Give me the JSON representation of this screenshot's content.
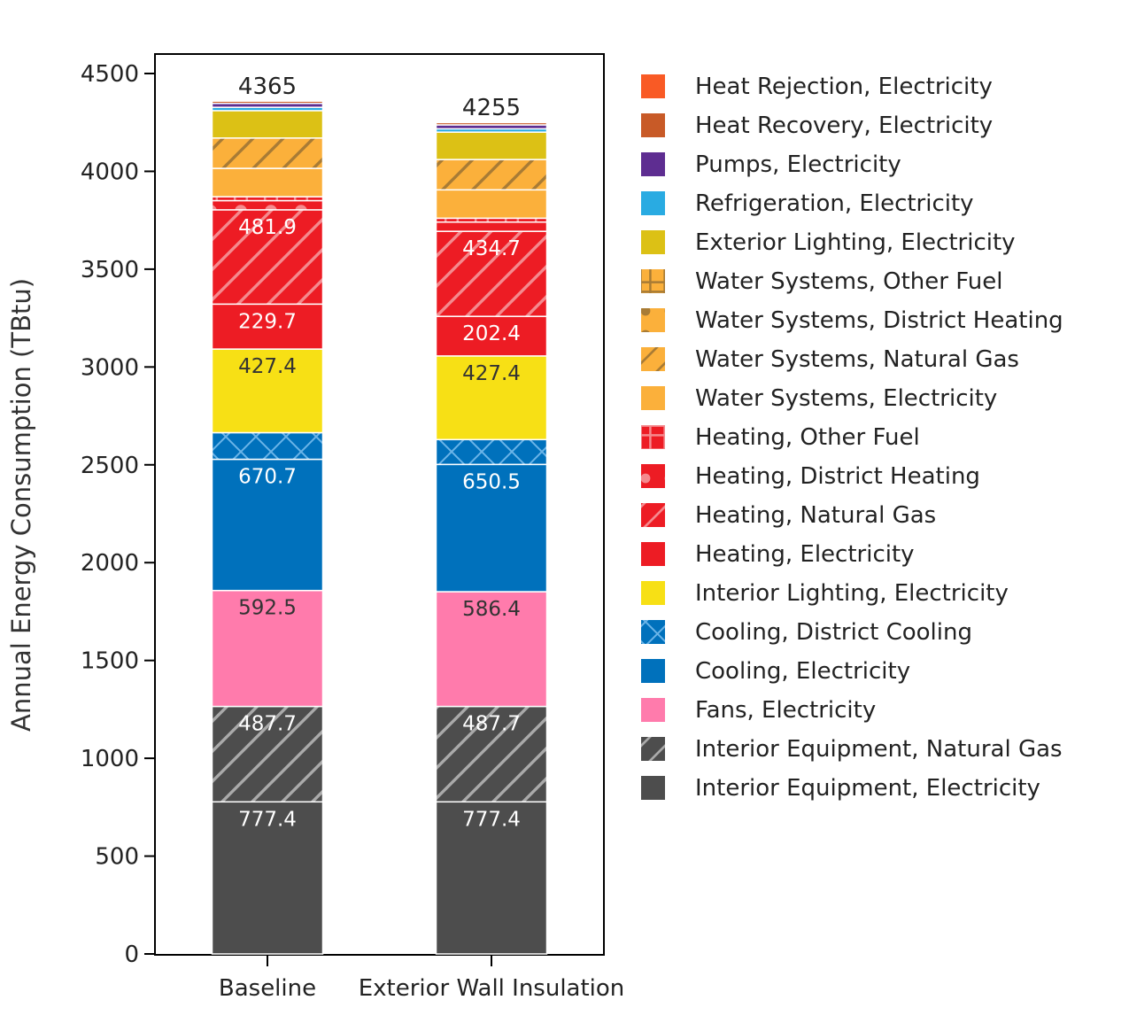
{
  "chart_data": {
    "type": "bar",
    "stacked": true,
    "ylabel": "Annual Energy Consumption (TBtu)",
    "xlabel": "",
    "ylim": [
      0,
      4500
    ],
    "yticks": [
      0,
      500,
      1000,
      1500,
      2000,
      2500,
      3000,
      3500,
      4000,
      4500
    ],
    "grid": false,
    "legend_placement": "right",
    "categories": [
      "Baseline",
      "Exterior Wall Insulation"
    ],
    "totals": [
      4365,
      4255
    ],
    "series": [
      {
        "name": "Interior Equipment, Electricity",
        "color": "#4d4d4d",
        "pattern": "none",
        "values": [
          777.4,
          777.4
        ],
        "labels": [
          "777.4",
          "777.4"
        ],
        "label_color": "#ffffff"
      },
      {
        "name": "Interior Equipment, Natural Gas",
        "color": "#4d4d4d",
        "pattern": "diagonal",
        "values": [
          487.7,
          487.7
        ],
        "labels": [
          "487.7",
          "487.7"
        ],
        "label_color": "#ffffff"
      },
      {
        "name": "Fans, Electricity",
        "color": "#ff7bac",
        "pattern": "none",
        "values": [
          592.5,
          586.4
        ],
        "labels": [
          "592.5",
          "586.4"
        ],
        "label_color": "#333333"
      },
      {
        "name": "Cooling, Electricity",
        "color": "#0071bc",
        "pattern": "none",
        "values": [
          670.7,
          650.5
        ],
        "labels": [
          "670.7",
          "650.5"
        ],
        "label_color": "#ffffff"
      },
      {
        "name": "Cooling, District Cooling",
        "color": "#0071bc",
        "pattern": "cross",
        "values": [
          136,
          127
        ],
        "labels": [
          "",
          ""
        ]
      },
      {
        "name": "Interior Lighting, Electricity",
        "color": "#f7e015",
        "pattern": "none",
        "values": [
          427.4,
          427.4
        ],
        "labels": [
          "427.4",
          "427.4"
        ],
        "label_color": "#333333"
      },
      {
        "name": "Heating, Electricity",
        "color": "#ed1c24",
        "pattern": "none",
        "values": [
          229.7,
          202.4
        ],
        "labels": [
          "229.7",
          "202.4"
        ],
        "label_color": "#ffffff"
      },
      {
        "name": "Heating, Natural Gas",
        "color": "#ed1c24",
        "pattern": "diagonal",
        "values": [
          481.9,
          434.7
        ],
        "labels": [
          "481.9",
          "434.7"
        ],
        "label_color": "#ffffff"
      },
      {
        "name": "Heating, District Heating",
        "color": "#ed1c24",
        "pattern": "dots",
        "values": [
          47,
          47
        ],
        "labels": [
          "",
          ""
        ]
      },
      {
        "name": "Heating, Other Fuel",
        "color": "#ed1c24",
        "pattern": "grid",
        "values": [
          20,
          20
        ],
        "labels": [
          "",
          ""
        ]
      },
      {
        "name": "Water Systems, Electricity",
        "color": "#fbb03b",
        "pattern": "none",
        "values": [
          145,
          145
        ],
        "labels": [
          "",
          ""
        ]
      },
      {
        "name": "Water Systems, Natural Gas",
        "color": "#fbb03b",
        "pattern": "diagonal",
        "values": [
          155,
          155
        ],
        "labels": [
          "",
          ""
        ]
      },
      {
        "name": "Water Systems, District Heating",
        "color": "#fbb03b",
        "pattern": "dots",
        "values": [
          0,
          0
        ],
        "labels": [
          "",
          ""
        ]
      },
      {
        "name": "Water Systems, Other Fuel",
        "color": "#fbb03b",
        "pattern": "grid",
        "values": [
          0,
          0
        ],
        "labels": [
          "",
          ""
        ]
      },
      {
        "name": "Exterior Lighting, Electricity",
        "color": "#dcc115",
        "pattern": "none",
        "values": [
          140,
          140
        ],
        "labels": [
          "",
          ""
        ]
      },
      {
        "name": "Refrigeration, Electricity",
        "color": "#29abe2",
        "pattern": "none",
        "values": [
          17,
          17
        ],
        "labels": [
          "",
          ""
        ]
      },
      {
        "name": "Pumps, Electricity",
        "color": "#5e2d91",
        "pattern": "none",
        "values": [
          20,
          20
        ],
        "labels": [
          "",
          ""
        ]
      },
      {
        "name": "Heat Recovery, Electricity",
        "color": "#c85a27",
        "pattern": "none",
        "values": [
          12,
          12
        ],
        "labels": [
          "",
          ""
        ]
      },
      {
        "name": "Heat Rejection, Electricity",
        "color": "#f95a25",
        "pattern": "none",
        "values": [
          6,
          6
        ],
        "labels": [
          "",
          ""
        ]
      }
    ]
  }
}
